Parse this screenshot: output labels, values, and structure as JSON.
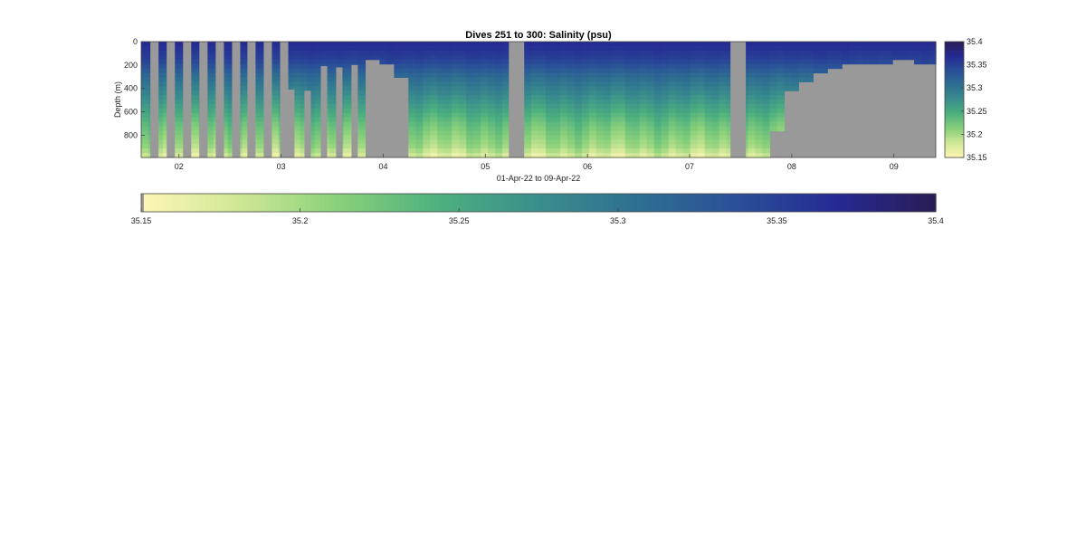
{
  "chart_data": {
    "type": "heatmap",
    "title": "Dives 251 to 300: Salinity (psu)",
    "xlabel": "01-Apr-22 to 09-Apr-22",
    "ylabel": "Depth (m)",
    "x_ticks": [
      "02",
      "03",
      "04",
      "05",
      "06",
      "07",
      "08",
      "09"
    ],
    "x_range_days": [
      1.63,
      9.41
    ],
    "y_ticks": [
      0,
      200,
      400,
      600,
      800
    ],
    "y_range": [
      0,
      990
    ],
    "y_reversed": true,
    "color_range": [
      35.15,
      35.4
    ],
    "colorbar_ticks": [
      35.15,
      35.2,
      35.25,
      35.3,
      35.35,
      35.4
    ],
    "colorbar_tick_labels": [
      "35.15",
      "35.2",
      "35.25",
      "35.3",
      "35.35",
      "35.4"
    ],
    "colormap": "yellow-green-blue (deep)",
    "colormap_stops": [
      "#FEF6B5",
      "#CFE795",
      "#88D07A",
      "#4DB07E",
      "#3A8E8C",
      "#2E6F91",
      "#2A4F98",
      "#252A93",
      "#2A1C55"
    ],
    "nodata_color": "#999999",
    "salinity_profile_typical": [
      {
        "depth": 0,
        "salinity": 35.37
      },
      {
        "depth": 150,
        "salinity": 35.35
      },
      {
        "depth": 300,
        "salinity": 35.31
      },
      {
        "depth": 500,
        "salinity": 35.27
      },
      {
        "depth": 700,
        "salinity": 35.23
      },
      {
        "depth": 900,
        "salinity": 35.2
      },
      {
        "depth": 990,
        "salinity": 35.17
      }
    ],
    "max_depth_by_day": [
      {
        "day": 1.63,
        "max_depth": 990
      },
      {
        "day": 3.82,
        "max_depth": 990
      },
      {
        "day": 3.84,
        "max_depth": 150
      },
      {
        "day": 3.98,
        "max_depth": 200
      },
      {
        "day": 4.12,
        "max_depth": 300
      },
      {
        "day": 4.27,
        "max_depth": 990
      },
      {
        "day": 7.75,
        "max_depth": 990
      },
      {
        "day": 7.76,
        "max_depth": 750
      },
      {
        "day": 7.92,
        "max_depth": 420
      },
      {
        "day": 8.05,
        "max_depth": 330
      },
      {
        "day": 8.18,
        "max_depth": 260
      },
      {
        "day": 8.32,
        "max_depth": 220
      },
      {
        "day": 8.5,
        "max_depth": 205
      },
      {
        "day": 8.7,
        "max_depth": 190
      },
      {
        "day": 9.0,
        "max_depth": 165
      },
      {
        "day": 9.18,
        "max_depth": 190
      },
      {
        "day": 9.41,
        "max_depth": 200
      }
    ],
    "nodata_bands_days": [
      [
        1.72,
        1.8
      ],
      [
        1.88,
        1.96
      ],
      [
        2.04,
        2.12
      ],
      [
        2.2,
        2.28
      ],
      [
        2.36,
        2.44
      ],
      [
        2.52,
        2.6
      ],
      [
        2.67,
        2.75
      ],
      [
        2.83,
        2.91
      ],
      [
        2.99,
        3.07
      ],
      [
        5.23,
        5.38
      ],
      [
        7.4,
        7.55
      ]
    ],
    "partial_dives": [
      {
        "day": 3.1,
        "max_depth": 410
      },
      {
        "day": 3.26,
        "max_depth": 420
      },
      {
        "day": 3.42,
        "max_depth": 210
      },
      {
        "day": 3.57,
        "max_depth": 220
      },
      {
        "day": 3.72,
        "max_depth": 200
      }
    ]
  }
}
